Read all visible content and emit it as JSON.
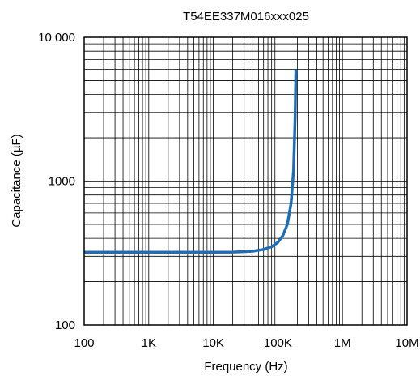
{
  "chart_data": {
    "type": "line",
    "title": "T54EE337M016xxx025",
    "xlabel": "Frequency (Hz)",
    "ylabel": "Capacitance (µF)",
    "xscale": "log",
    "yscale": "log",
    "xlim": [
      100,
      10000000
    ],
    "ylim": [
      100,
      10000
    ],
    "grid": true,
    "legend": "none",
    "x_ticks": [
      100,
      1000,
      10000,
      100000,
      1000000,
      10000000
    ],
    "x_tick_labels": [
      "100",
      "1K",
      "10K",
      "100K",
      "1M",
      "10M"
    ],
    "y_ticks": [
      100,
      1000,
      10000
    ],
    "y_tick_labels": [
      "100",
      "1000",
      "10 000"
    ],
    "series": [
      {
        "color": "#1f6db5",
        "x": [
          100,
          200,
          500,
          1000,
          2000,
          5000,
          10000,
          20000,
          40000,
          60000,
          80000,
          100000,
          120000,
          140000,
          160000,
          175000,
          185000,
          190000
        ],
        "y": [
          320,
          320,
          320,
          320,
          320,
          320,
          320,
          321,
          325,
          335,
          350,
          375,
          420,
          500,
          700,
          1200,
          2800,
          6000
        ]
      }
    ]
  }
}
